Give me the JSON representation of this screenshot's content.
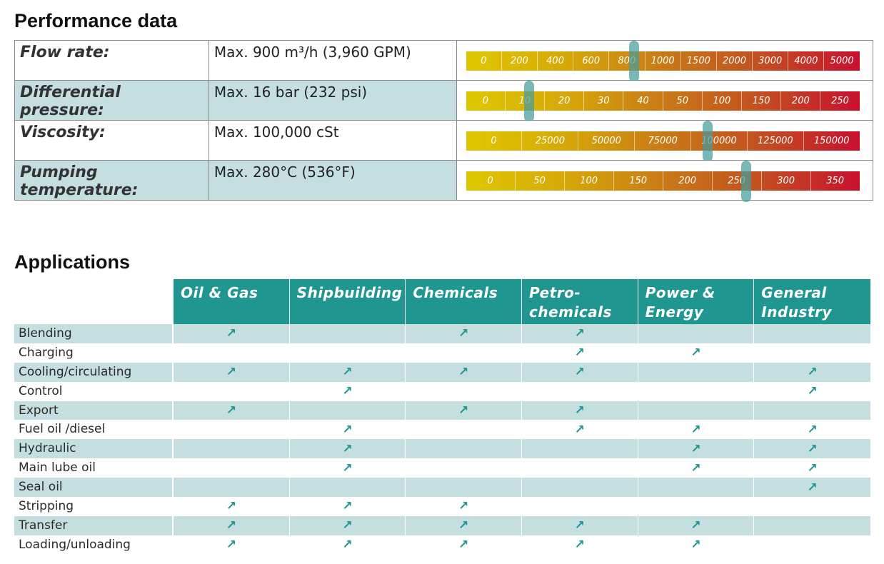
{
  "performance": {
    "title": "Performance data",
    "rows": [
      {
        "label": "Flow rate:",
        "value": "Max. 900 m³/h (3,960 GPM)",
        "ticks": [
          "0",
          "200",
          "400",
          "600",
          "800",
          "1000",
          "1500",
          "2000",
          "3000",
          "4000",
          "5000"
        ],
        "marker_index": 4.7
      },
      {
        "label": "Differential pressure:",
        "value": "Max. 16 bar (232 psi)",
        "ticks": [
          "0",
          "10",
          "20",
          "30",
          "40",
          "50",
          "100",
          "150",
          "200",
          "250"
        ],
        "marker_index": 1.6
      },
      {
        "label": "Viscosity:",
        "value": "Max. 100,000 cSt",
        "ticks": [
          "0",
          "25000",
          "50000",
          "75000",
          "100000",
          "125000",
          "150000"
        ],
        "marker_index": 4.3
      },
      {
        "label": "Pumping temperature:",
        "value": "Max. 280°C (536°F)",
        "ticks": [
          "0",
          "50",
          "100",
          "150",
          "200",
          "250",
          "300",
          "350"
        ],
        "marker_index": 5.7
      }
    ]
  },
  "applications": {
    "title": "Applications",
    "columns": [
      "Oil & Gas",
      "Shipbuilding",
      "Chemicals",
      "Petro-\nchemicals",
      "Power &\nEnergy",
      "General\nIndustry"
    ],
    "marker_glyph": "↗",
    "colors": {
      "header": "#1f9690",
      "shade": "#c5dfe0",
      "marker": "#1f9690"
    },
    "rows": [
      {
        "label": "Blending",
        "marks": [
          1,
          0,
          1,
          1,
          0,
          0
        ]
      },
      {
        "label": "Charging",
        "marks": [
          0,
          0,
          0,
          1,
          1,
          0
        ]
      },
      {
        "label": "Cooling/circulating",
        "marks": [
          1,
          1,
          1,
          1,
          0,
          1
        ]
      },
      {
        "label": "Control",
        "marks": [
          0,
          1,
          0,
          0,
          0,
          1
        ]
      },
      {
        "label": "Export",
        "marks": [
          1,
          0,
          1,
          1,
          0,
          0
        ]
      },
      {
        "label": "Fuel oil /diesel",
        "marks": [
          0,
          1,
          0,
          1,
          1,
          1
        ]
      },
      {
        "label": "Hydraulic",
        "marks": [
          0,
          1,
          0,
          0,
          1,
          1
        ]
      },
      {
        "label": "Main lube oil",
        "marks": [
          0,
          1,
          0,
          0,
          1,
          1
        ]
      },
      {
        "label": "Seal oil",
        "marks": [
          0,
          0,
          0,
          0,
          0,
          1
        ]
      },
      {
        "label": "Stripping",
        "marks": [
          1,
          1,
          1,
          0,
          0,
          0
        ]
      },
      {
        "label": "Transfer",
        "marks": [
          1,
          1,
          1,
          1,
          1,
          0
        ]
      },
      {
        "label": "Loading/unloading",
        "marks": [
          1,
          1,
          1,
          1,
          1,
          0
        ]
      }
    ]
  }
}
